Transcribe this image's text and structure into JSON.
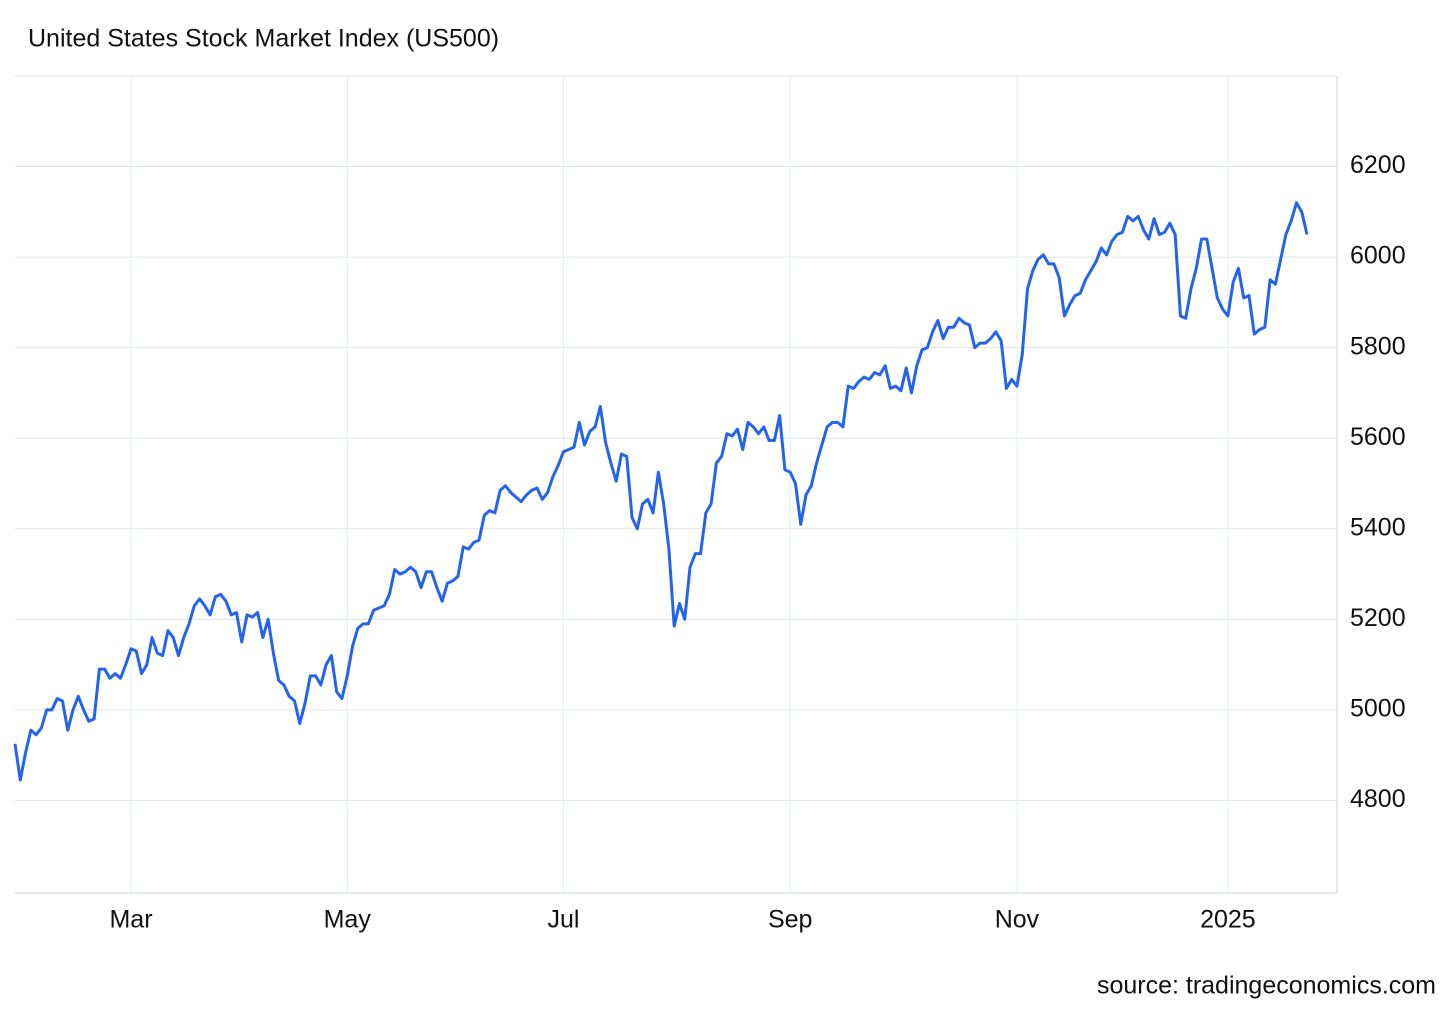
{
  "chart_data": {
    "type": "line",
    "title": "United States Stock Market Index (US500)",
    "source": "source: tradingeconomics.com",
    "categories": [
      null,
      null,
      null,
      null,
      null,
      null,
      null,
      null,
      null,
      null,
      null,
      null,
      null,
      null,
      null,
      null,
      null,
      null,
      null,
      null,
      null,
      null,
      "Mar",
      null,
      null,
      null,
      null,
      null,
      null,
      null,
      null,
      null,
      null,
      null,
      null,
      null,
      null,
      null,
      null,
      null,
      null,
      null,
      null,
      null,
      null,
      null,
      null,
      null,
      null,
      null,
      null,
      null,
      null,
      null,
      null,
      null,
      null,
      null,
      null,
      null,
      null,
      null,
      null,
      "May",
      null,
      null,
      null,
      null,
      null,
      null,
      null,
      null,
      null,
      null,
      null,
      null,
      null,
      null,
      null,
      null,
      null,
      null,
      null,
      null,
      null,
      null,
      null,
      null,
      null,
      null,
      null,
      null,
      null,
      null,
      null,
      null,
      null,
      null,
      null,
      null,
      null,
      null,
      null,
      null,
      "Jul",
      null,
      null,
      null,
      null,
      null,
      null,
      null,
      null,
      null,
      null,
      null,
      null,
      null,
      null,
      null,
      null,
      null,
      null,
      null,
      null,
      null,
      null,
      null,
      null,
      null,
      null,
      null,
      null,
      null,
      null,
      null,
      null,
      null,
      null,
      null,
      null,
      null,
      null,
      null,
      null,
      null,
      null,
      "Sep",
      null,
      null,
      null,
      null,
      null,
      null,
      null,
      null,
      null,
      null,
      null,
      null,
      null,
      null,
      null,
      null,
      null,
      null,
      null,
      null,
      null,
      null,
      null,
      null,
      null,
      null,
      null,
      null,
      null,
      null,
      null,
      null,
      null,
      null,
      null,
      null,
      null,
      null,
      null,
      null,
      null,
      null,
      "Nov",
      null,
      null,
      null,
      null,
      null,
      null,
      null,
      null,
      null,
      null,
      null,
      null,
      null,
      null,
      null,
      null,
      null,
      null,
      null,
      null,
      null,
      null,
      null,
      null,
      null,
      null,
      null,
      null,
      null,
      null,
      null,
      null,
      null,
      null,
      null,
      null,
      null,
      null,
      null,
      "2025",
      null,
      null,
      null,
      null,
      null,
      null,
      null,
      null,
      null,
      null,
      null,
      null,
      null,
      null,
      null
    ],
    "series": [
      {
        "name": "US500",
        "color": "#2563eb",
        "values": [
          4925,
          4845,
          4905,
          4955,
          4945,
          4960,
          5000,
          5000,
          5025,
          5020,
          4955,
          5000,
          5030,
          5000,
          4975,
          4980,
          5090,
          5090,
          5070,
          5080,
          5070,
          5100,
          5135,
          5130,
          5080,
          5100,
          5160,
          5125,
          5120,
          5175,
          5160,
          5120,
          5160,
          5190,
          5230,
          5245,
          5230,
          5210,
          5250,
          5255,
          5240,
          5210,
          5215,
          5150,
          5210,
          5205,
          5215,
          5160,
          5200,
          5125,
          5065,
          5055,
          5030,
          5020,
          4970,
          5015,
          5075,
          5075,
          5055,
          5100,
          5120,
          5040,
          5025,
          5075,
          5140,
          5180,
          5190,
          5190,
          5220,
          5225,
          5230,
          5255,
          5310,
          5300,
          5305,
          5315,
          5305,
          5270,
          5305,
          5305,
          5270,
          5240,
          5280,
          5285,
          5295,
          5360,
          5355,
          5370,
          5375,
          5430,
          5440,
          5435,
          5485,
          5495,
          5480,
          5470,
          5460,
          5475,
          5485,
          5490,
          5465,
          5480,
          5515,
          5540,
          5570,
          5575,
          5580,
          5635,
          5585,
          5615,
          5625,
          5670,
          5590,
          5545,
          5505,
          5565,
          5560,
          5425,
          5400,
          5455,
          5465,
          5435,
          5525,
          5455,
          5355,
          5185,
          5235,
          5200,
          5315,
          5345,
          5345,
          5435,
          5455,
          5545,
          5560,
          5610,
          5605,
          5620,
          5575,
          5635,
          5625,
          5610,
          5625,
          5595,
          5595,
          5650,
          5530,
          5525,
          5500,
          5410,
          5475,
          5495,
          5545,
          5585,
          5625,
          5635,
          5635,
          5625,
          5715,
          5710,
          5725,
          5735,
          5730,
          5745,
          5740,
          5760,
          5710,
          5715,
          5705,
          5755,
          5700,
          5760,
          5795,
          5800,
          5835,
          5860,
          5820,
          5845,
          5845,
          5865,
          5855,
          5850,
          5800,
          5810,
          5810,
          5820,
          5835,
          5815,
          5710,
          5730,
          5715,
          5785,
          5930,
          5970,
          5995,
          6005,
          5985,
          5985,
          5955,
          5870,
          5895,
          5915,
          5920,
          5950,
          5970,
          5990,
          6020,
          6005,
          6035,
          6050,
          6055,
          6090,
          6080,
          6090,
          6060,
          6040,
          6085,
          6050,
          6055,
          6075,
          6050,
          5870,
          5865,
          5930,
          5975,
          6040,
          6040,
          5975,
          5910,
          5885,
          5870,
          5945,
          5975,
          5910,
          5915,
          5830,
          5840,
          5845,
          5950,
          5940,
          5995,
          6050,
          6080,
          6120,
          6100,
          6050
        ]
      }
    ],
    "ylim": [
      4600,
      6400
    ],
    "yticks": [
      4800,
      5000,
      5200,
      5400,
      5600,
      5800,
      6000,
      6200
    ],
    "grid": true
  }
}
